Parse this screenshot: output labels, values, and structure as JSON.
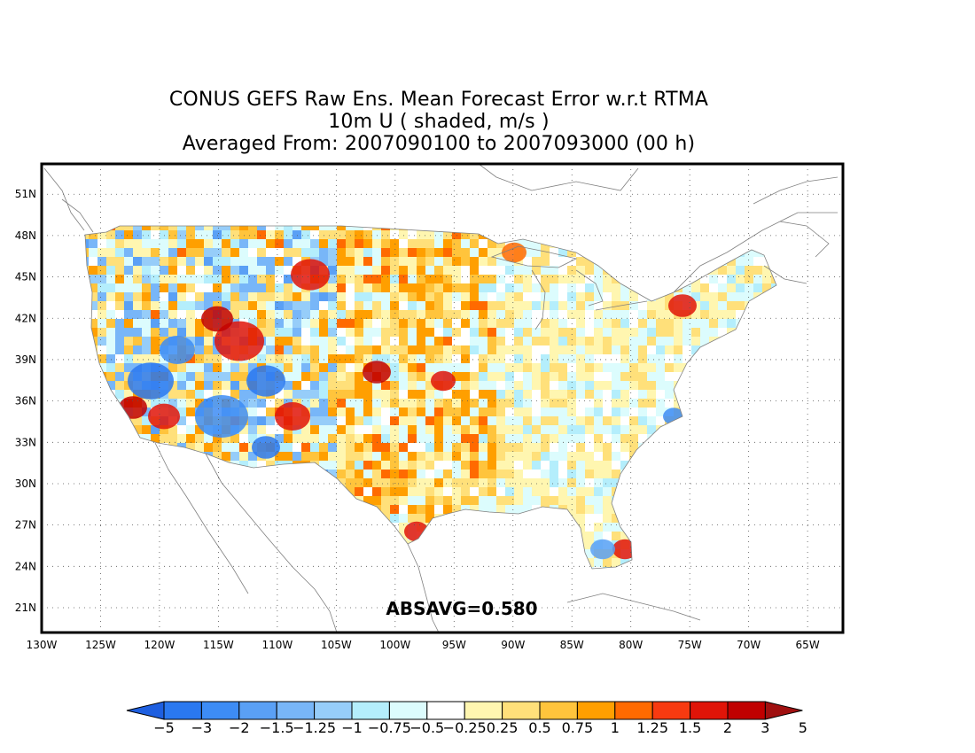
{
  "title": {
    "line1": "CONUS GEFS Raw Ens. Mean Forecast Error w.r.t RTMA",
    "line2": "10m U ( shaded, m/s )",
    "line3": "Averaged From: 2007090100 to 2007093000 (00 h)"
  },
  "map": {
    "lon_ticks": [
      "130W",
      "125W",
      "120W",
      "115W",
      "110W",
      "105W",
      "100W",
      "95W",
      "90W",
      "85W",
      "80W",
      "75W",
      "70W",
      "65W"
    ],
    "lat_ticks": [
      "51N",
      "48N",
      "45N",
      "42N",
      "39N",
      "36N",
      "33N",
      "30N",
      "27N",
      "24N",
      "21N"
    ],
    "lon_range": [
      -130,
      -62
    ],
    "lat_range": [
      19.2,
      53.2
    ],
    "grid": "dotted",
    "annotation": "ABSAVG=0.580",
    "absavg": 0.58
  },
  "colorbar": {
    "labels": [
      "−5",
      "−3",
      "−2",
      "−1.5",
      "−1.25",
      "−1",
      "−0.75",
      "−0.5",
      "−0.25",
      "0.25",
      "0.5",
      "0.75",
      "1",
      "1.25",
      "1.5",
      "2",
      "3",
      "5"
    ],
    "colors": [
      "#1e5fe0",
      "#2a78f0",
      "#3d8cf5",
      "#5aa0f5",
      "#78b6f8",
      "#96cdf9",
      "#b4eefc",
      "#dcfcfd",
      "#ffffff",
      "#fff6b0",
      "#ffe07a",
      "#ffc43c",
      "#ff9f00",
      "#ff6a00",
      "#f83a10",
      "#e01408",
      "#c00000",
      "#a01010"
    ]
  },
  "colors": {
    "neg_strong": "#2a78f0",
    "neg_weak": "#b4eefc",
    "pos_weak": "#ffe07a",
    "pos_strong": "#e01408"
  }
}
